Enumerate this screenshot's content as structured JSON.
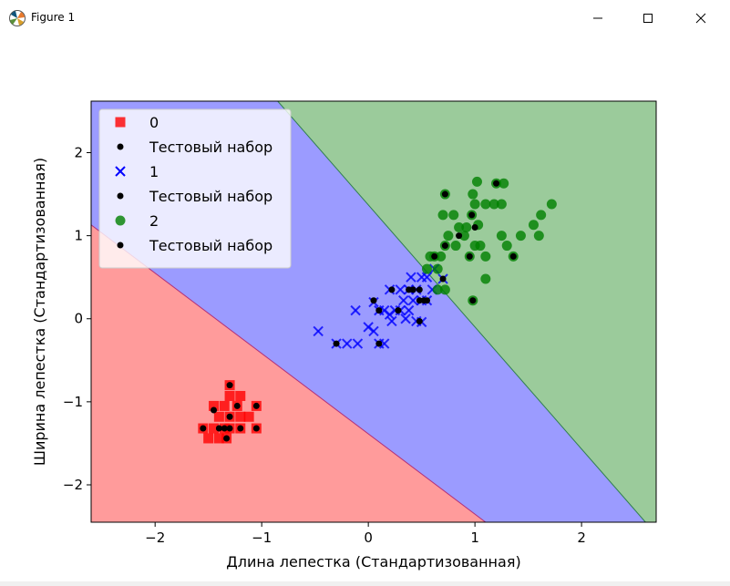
{
  "window": {
    "title": "Figure 1",
    "icons": [
      "matplotlib-icon",
      "minimize-icon",
      "maximize-icon",
      "close-icon"
    ]
  },
  "chart_data": {
    "type": "scatter",
    "xlabel": "Длина лепестка (Стандартизованная)",
    "ylabel": "Ширина лепестка (Стандартизованная)",
    "xlim": [
      -2.6,
      2.7
    ],
    "ylim": [
      -2.45,
      2.62
    ],
    "xticks": [
      -2,
      -1,
      0,
      1,
      2
    ],
    "yticks": [
      -2,
      -1,
      0,
      1,
      2
    ],
    "grid": false,
    "legend_position": "top-left",
    "decision_regions": [
      {
        "class": "0",
        "color": "#ff9b9b"
      },
      {
        "class": "1",
        "color": "#9b9bff"
      },
      {
        "class": "2",
        "color": "#9bcb9b"
      }
    ],
    "boundaries": [
      {
        "between": [
          "0",
          "1"
        ],
        "points": [
          [
            -2.6,
            1.13
          ],
          [
            1.1,
            -2.45
          ]
        ]
      },
      {
        "between": [
          "1",
          "2"
        ],
        "points": [
          [
            -0.85,
            2.62
          ],
          [
            2.6,
            -2.45
          ]
        ]
      }
    ],
    "legend": [
      {
        "label": "0",
        "marker": "square",
        "color": "#ff0000"
      },
      {
        "label": "Тестовый набор",
        "marker": "circle",
        "color": "#000000"
      },
      {
        "label": "1",
        "marker": "x",
        "color": "#0000ff"
      },
      {
        "label": "Тестовый набор",
        "marker": "circle",
        "color": "#000000"
      },
      {
        "label": "2",
        "marker": "circle",
        "color": "#008000"
      },
      {
        "label": "Тестовый набор",
        "marker": "circle",
        "color": "#000000"
      }
    ],
    "series": [
      {
        "name": "0",
        "marker": "square",
        "color": "#ff0000",
        "points": [
          [
            -1.3,
            -0.8
          ],
          [
            -1.35,
            -1.05
          ],
          [
            -1.45,
            -1.05
          ],
          [
            -1.23,
            -1.05
          ],
          [
            -1.05,
            -1.05
          ],
          [
            -1.4,
            -1.18
          ],
          [
            -1.3,
            -1.18
          ],
          [
            -1.2,
            -1.18
          ],
          [
            -1.12,
            -1.18
          ],
          [
            -1.55,
            -1.32
          ],
          [
            -1.45,
            -1.32
          ],
          [
            -1.35,
            -1.32
          ],
          [
            -1.3,
            -1.32
          ],
          [
            -1.2,
            -1.32
          ],
          [
            -1.05,
            -1.32
          ],
          [
            -1.5,
            -1.44
          ],
          [
            -1.4,
            -1.44
          ],
          [
            -1.33,
            -1.44
          ],
          [
            -1.2,
            -0.93
          ],
          [
            -1.3,
            -0.93
          ]
        ]
      },
      {
        "name": "Тестовый набор",
        "marker": "circle",
        "color": "#000000",
        "points": [
          [
            -1.3,
            -0.8
          ],
          [
            -1.23,
            -1.05
          ],
          [
            -1.05,
            -1.05
          ],
          [
            -1.45,
            -1.1
          ],
          [
            -1.3,
            -1.18
          ],
          [
            -1.55,
            -1.32
          ],
          [
            -1.35,
            -1.32
          ],
          [
            -1.3,
            -1.32
          ],
          [
            -1.2,
            -1.32
          ],
          [
            -1.05,
            -1.32
          ],
          [
            -1.4,
            -1.32
          ],
          [
            -1.33,
            -1.44
          ]
        ]
      },
      {
        "name": "1",
        "marker": "x",
        "color": "#0000ff",
        "points": [
          [
            -0.47,
            -0.15
          ],
          [
            -0.3,
            -0.3
          ],
          [
            -0.2,
            -0.3
          ],
          [
            -0.1,
            -0.3
          ],
          [
            -0.12,
            0.1
          ],
          [
            0.05,
            -0.15
          ],
          [
            0.1,
            -0.3
          ],
          [
            0.15,
            -0.3
          ],
          [
            0.0,
            -0.1
          ],
          [
            0.05,
            0.2
          ],
          [
            0.1,
            0.1
          ],
          [
            0.2,
            0.05
          ],
          [
            0.25,
            0.1
          ],
          [
            0.22,
            -0.03
          ],
          [
            0.3,
            0.1
          ],
          [
            0.33,
            0.22
          ],
          [
            0.38,
            0.35
          ],
          [
            0.38,
            0.1
          ],
          [
            0.42,
            0.22
          ],
          [
            0.45,
            0.35
          ],
          [
            0.5,
            0.22
          ],
          [
            0.5,
            0.5
          ],
          [
            0.4,
            0.5
          ],
          [
            0.35,
            0.0
          ],
          [
            0.55,
            0.22
          ],
          [
            0.45,
            -0.03
          ],
          [
            0.3,
            0.35
          ],
          [
            0.6,
            0.35
          ],
          [
            0.2,
            0.35
          ],
          [
            0.55,
            0.5
          ],
          [
            0.62,
            0.6
          ],
          [
            0.7,
            0.48
          ],
          [
            0.5,
            -0.04
          ],
          [
            0.15,
            0.1
          ]
        ]
      },
      {
        "name": "Тестовый набор",
        "marker": "circle",
        "color": "#000000",
        "points": [
          [
            -0.3,
            -0.3
          ],
          [
            0.1,
            -0.3
          ],
          [
            0.05,
            0.22
          ],
          [
            0.1,
            0.1
          ],
          [
            0.22,
            0.35
          ],
          [
            0.28,
            0.1
          ],
          [
            0.38,
            0.35
          ],
          [
            0.42,
            0.35
          ],
          [
            0.48,
            0.35
          ],
          [
            0.48,
            0.22
          ],
          [
            0.52,
            0.22
          ],
          [
            0.55,
            0.22
          ],
          [
            0.48,
            -0.03
          ],
          [
            0.7,
            0.48
          ]
        ]
      },
      {
        "name": "2",
        "marker": "circle",
        "color": "#008000",
        "points": [
          [
            0.62,
            0.75
          ],
          [
            0.65,
            0.6
          ],
          [
            0.68,
            0.75
          ],
          [
            0.72,
            0.88
          ],
          [
            0.75,
            1.0
          ],
          [
            0.7,
            1.25
          ],
          [
            0.72,
            1.5
          ],
          [
            0.65,
            0.35
          ],
          [
            0.72,
            0.35
          ],
          [
            0.82,
            0.88
          ],
          [
            0.85,
            1.1
          ],
          [
            0.92,
            1.1
          ],
          [
            0.95,
            0.75
          ],
          [
            0.97,
            1.25
          ],
          [
            1.0,
            1.38
          ],
          [
            1.03,
            1.13
          ],
          [
            1.05,
            0.88
          ],
          [
            1.1,
            0.75
          ],
          [
            0.98,
            1.5
          ],
          [
            1.02,
            1.65
          ],
          [
            1.1,
            1.38
          ],
          [
            1.18,
            1.38
          ],
          [
            1.2,
            1.63
          ],
          [
            1.25,
            1.38
          ],
          [
            1.27,
            1.63
          ],
          [
            1.25,
            1.0
          ],
          [
            1.3,
            0.88
          ],
          [
            1.36,
            0.75
          ],
          [
            1.43,
            1.0
          ],
          [
            1.55,
            1.13
          ],
          [
            1.6,
            1.0
          ],
          [
            1.62,
            1.25
          ],
          [
            1.72,
            1.38
          ],
          [
            1.1,
            0.48
          ],
          [
            0.98,
            0.22
          ],
          [
            0.55,
            0.6
          ],
          [
            0.58,
            0.75
          ],
          [
            0.9,
            1.0
          ],
          [
            1.0,
            0.88
          ],
          [
            0.8,
            1.25
          ]
        ]
      },
      {
        "name": "Тестовый набор",
        "marker": "circle",
        "color": "#000000",
        "points": [
          [
            0.72,
            1.5
          ],
          [
            0.62,
            0.75
          ],
          [
            0.72,
            0.88
          ],
          [
            0.85,
            1.0
          ],
          [
            0.95,
            0.75
          ],
          [
            0.97,
            1.25
          ],
          [
            1.0,
            1.1
          ],
          [
            1.2,
            1.63
          ],
          [
            1.36,
            0.75
          ],
          [
            0.98,
            0.22
          ]
        ]
      }
    ]
  }
}
